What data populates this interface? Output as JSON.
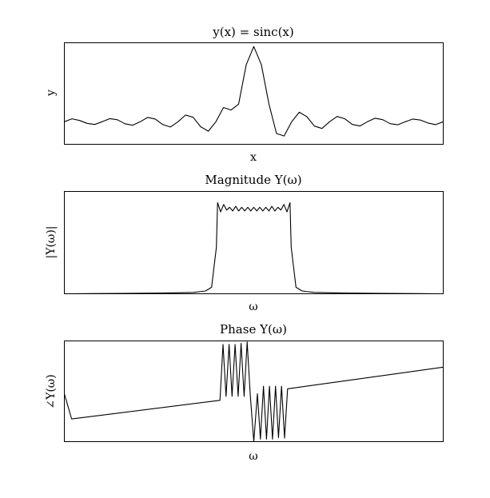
{
  "chart_data": [
    {
      "type": "line",
      "title": "y(x) = sinc(x)",
      "xlabel": "x",
      "ylabel": "y",
      "xlim": [
        -10,
        10
      ],
      "ylim": [
        -0.3,
        1.05
      ],
      "grid": false,
      "legend": "none",
      "line_color": "#000000",
      "series": [
        {
          "x": [
            -10.0,
            -9.6,
            -9.2,
            -8.8,
            -8.4,
            -8.0,
            -7.6,
            -7.2,
            -6.8,
            -6.4,
            -6.0,
            -5.6,
            -5.2,
            -4.8,
            -4.4,
            -4.0,
            -3.6,
            -3.2,
            -2.8,
            -2.4,
            -2.0,
            -1.6,
            -1.2,
            -0.8,
            -0.4,
            0.0,
            0.4,
            0.8,
            1.2,
            1.6,
            2.0,
            2.4,
            2.8,
            3.2,
            3.6,
            4.0,
            4.4,
            4.8,
            5.2,
            5.6,
            6.0,
            6.4,
            6.8,
            7.2,
            7.6,
            8.0,
            8.4,
            8.8,
            9.2,
            9.6,
            10.0
          ],
          "values": [
            0.0,
            0.039,
            0.017,
            -0.022,
            -0.036,
            0.0,
            0.041,
            0.026,
            -0.027,
            -0.047,
            0.0,
            0.057,
            0.036,
            -0.039,
            -0.07,
            0.0,
            0.089,
            0.058,
            -0.067,
            -0.126,
            0.0,
            0.189,
            0.156,
            0.234,
            0.757,
            1.0,
            0.757,
            0.234,
            -0.156,
            -0.189,
            0.0,
            0.126,
            0.067,
            -0.058,
            -0.089,
            0.0,
            0.07,
            0.039,
            -0.036,
            -0.057,
            0.0,
            0.047,
            0.027,
            -0.026,
            -0.041,
            0.0,
            0.036,
            0.022,
            -0.017,
            -0.039,
            0.0
          ]
        }
      ]
    },
    {
      "type": "line",
      "title": "Magnitude Y(ω)",
      "xlabel": "ω",
      "ylabel": "|Y(ω)|",
      "xlim": [
        -3.14,
        3.14
      ],
      "ylim": [
        0,
        1.1
      ],
      "grid": false,
      "legend": "none",
      "line_color": "#000000",
      "series": [
        {
          "x": [
            -3.14,
            -2.5,
            -2.0,
            -1.5,
            -1.0,
            -0.8,
            -0.7,
            -0.62,
            -0.6,
            -0.55,
            -0.5,
            -0.45,
            -0.4,
            -0.35,
            -0.3,
            -0.25,
            -0.2,
            -0.15,
            -0.1,
            -0.05,
            0.0,
            0.05,
            0.1,
            0.15,
            0.2,
            0.25,
            0.3,
            0.35,
            0.4,
            0.45,
            0.5,
            0.55,
            0.6,
            0.62,
            0.7,
            0.8,
            1.0,
            1.5,
            2.0,
            2.5,
            3.14
          ],
          "values": [
            0.0,
            0.003,
            0.005,
            0.008,
            0.015,
            0.03,
            0.07,
            0.5,
            0.98,
            0.88,
            0.96,
            0.9,
            0.93,
            0.89,
            0.94,
            0.89,
            0.93,
            0.89,
            0.93,
            0.89,
            0.93,
            0.89,
            0.93,
            0.89,
            0.93,
            0.89,
            0.94,
            0.89,
            0.93,
            0.9,
            0.96,
            0.88,
            0.98,
            0.5,
            0.07,
            0.03,
            0.015,
            0.008,
            0.005,
            0.003,
            0.0
          ]
        }
      ]
    },
    {
      "type": "line",
      "title": "Phase Y(ω)",
      "xlabel": "ω",
      "ylabel": "∠Y(ω)",
      "xlim": [
        -3.14,
        3.14
      ],
      "ylim": [
        -1.0,
        1.0
      ],
      "grid": false,
      "legend": "none",
      "line_color": "#000000",
      "series": [
        {
          "x": [
            -3.14,
            -3.02,
            -0.56,
            -0.51,
            -0.46,
            -0.41,
            -0.36,
            -0.31,
            -0.26,
            -0.21,
            -0.16,
            -0.11,
            -0.06,
            0.0,
            0.06,
            0.11,
            0.16,
            0.21,
            0.26,
            0.31,
            0.36,
            0.41,
            0.46,
            0.51,
            0.56,
            3.14
          ],
          "values": [
            -0.05,
            -0.55,
            -0.18,
            0.93,
            -0.1,
            0.93,
            -0.1,
            0.93,
            -0.1,
            0.95,
            -0.1,
            0.98,
            -0.05,
            -1.0,
            -0.05,
            -0.95,
            0.1,
            -0.95,
            0.1,
            -0.95,
            0.1,
            -0.92,
            0.1,
            -0.93,
            0.05,
            0.48
          ]
        }
      ]
    }
  ]
}
